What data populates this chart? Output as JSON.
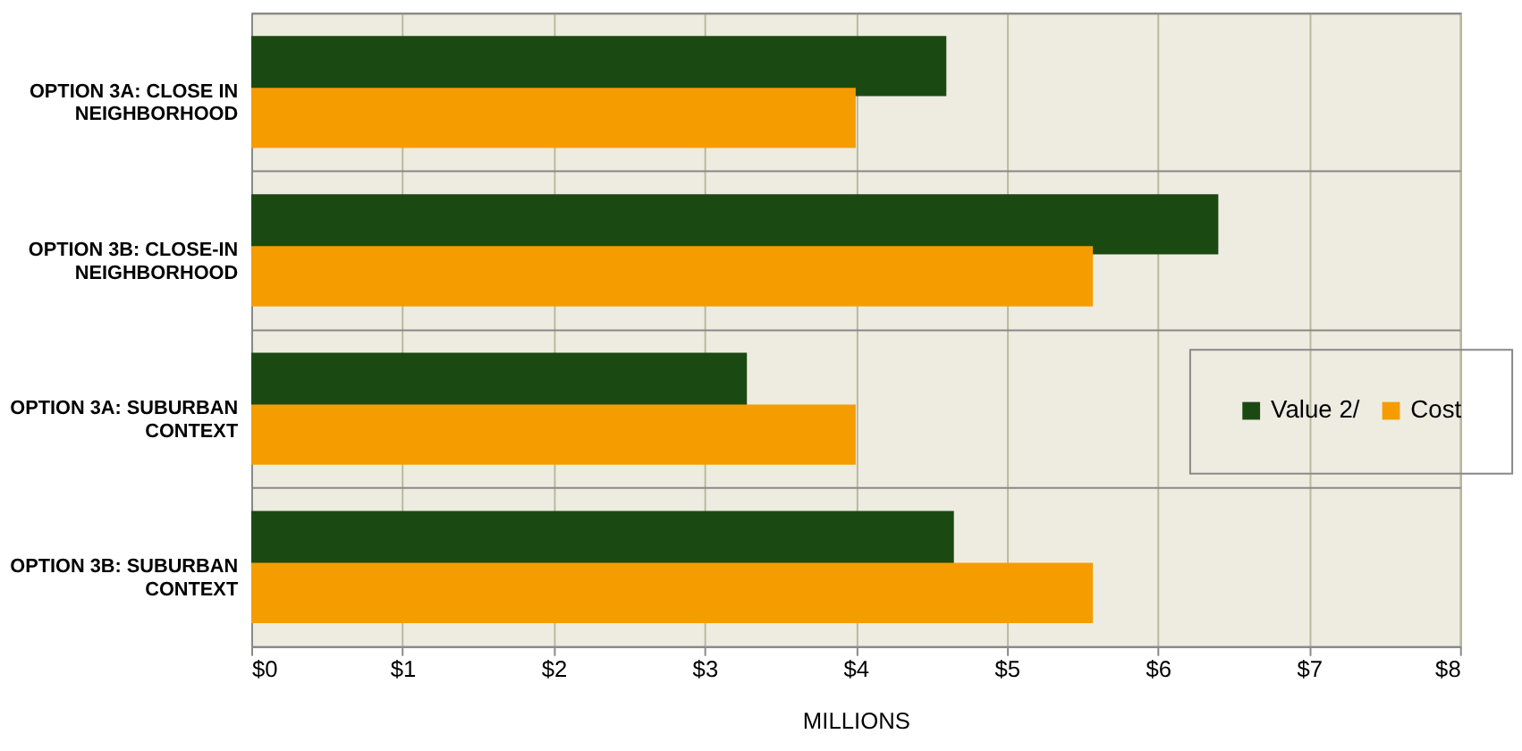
{
  "chart_data": {
    "type": "bar",
    "orientation": "horizontal",
    "categories": [
      "OPTION 3A: CLOSE IN\nNEIGHBORHOOD",
      "OPTION 3B: CLOSE-IN\nNEIGHBORHOOD",
      "OPTION 3A: SUBURBAN\nCONTEXT",
      "OPTION 3B: SUBURBAN\nCONTEXT"
    ],
    "series": [
      {
        "name": "Value 2/",
        "color": "#1a4a12",
        "values": [
          4.6,
          6.4,
          3.28,
          4.65
        ]
      },
      {
        "name": "Cost",
        "color": "#f59d00",
        "values": [
          4.0,
          5.57,
          4.0,
          5.57
        ]
      }
    ],
    "xlabel": "MILLIONS",
    "xlim": [
      0,
      8
    ],
    "xticks": [
      {
        "value": 0,
        "label": "$0"
      },
      {
        "value": 1,
        "label": "$1"
      },
      {
        "value": 2,
        "label": "$2"
      },
      {
        "value": 3,
        "label": "$3"
      },
      {
        "value": 4,
        "label": "$4"
      },
      {
        "value": 5,
        "label": "$5"
      },
      {
        "value": 6,
        "label": "$6"
      },
      {
        "value": 7,
        "label": "$7"
      },
      {
        "value": 8,
        "label": "$8"
      }
    ],
    "grid": true,
    "legend": "right"
  }
}
